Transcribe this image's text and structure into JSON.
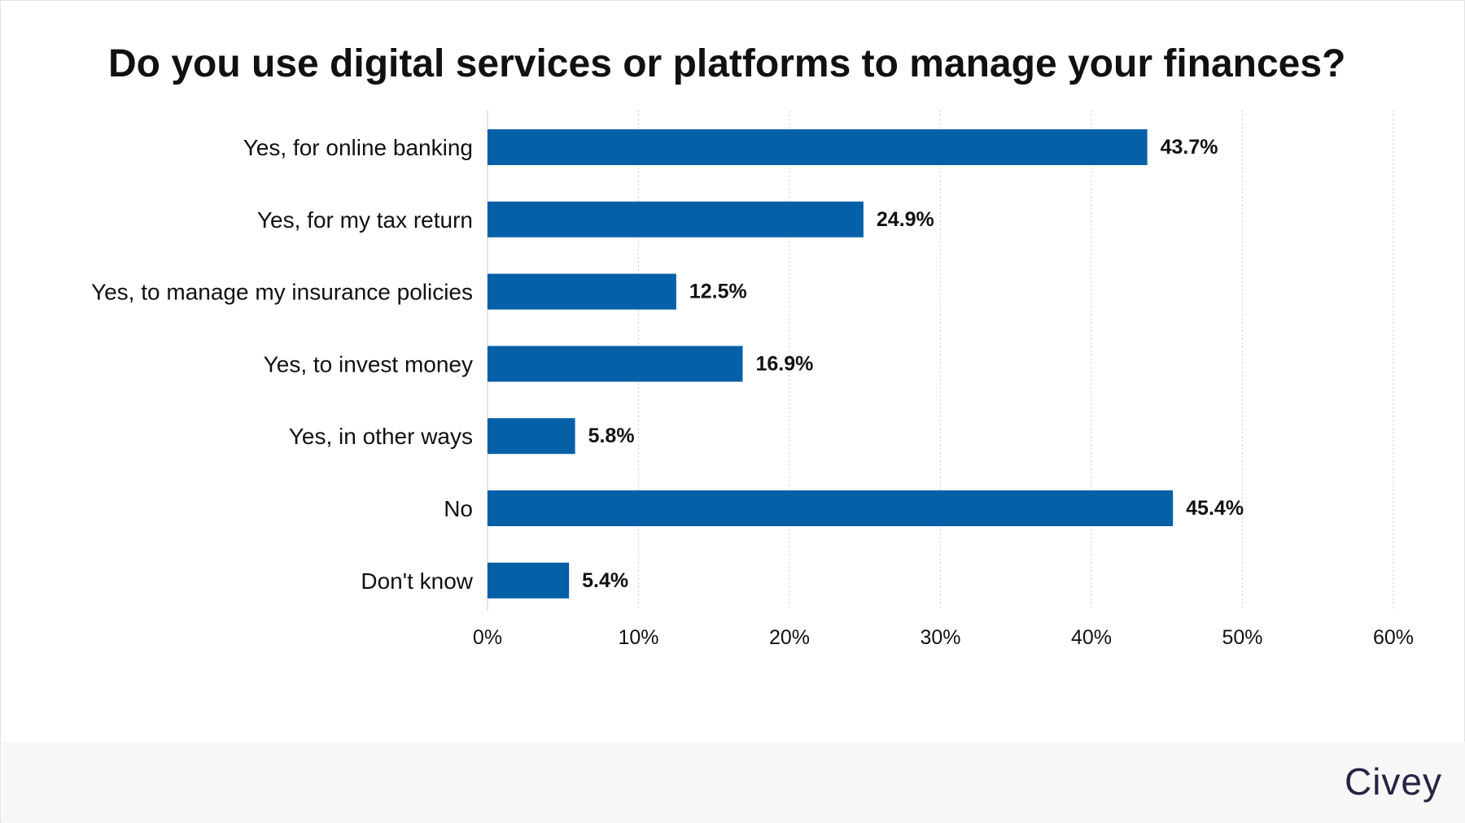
{
  "chart_data": {
    "type": "bar",
    "orientation": "horizontal",
    "title": "Do you use digital services or platforms to manage your finances?",
    "categories": [
      "Yes, for online banking",
      "Yes, for my tax return",
      "Yes, to manage my insurance policies",
      "Yes, to invest money",
      "Yes, in other ways",
      "No",
      "Don't know"
    ],
    "values": [
      43.7,
      24.9,
      12.5,
      16.9,
      5.8,
      45.4,
      5.4
    ],
    "value_labels": [
      "43.7%",
      "24.9%",
      "12.5%",
      "16.9%",
      "5.8%",
      "45.4%",
      "5.4%"
    ],
    "xlim": [
      0,
      60
    ],
    "xticks": [
      0,
      10,
      20,
      30,
      40,
      50,
      60
    ],
    "xtick_labels": [
      "0%",
      "10%",
      "20%",
      "30%",
      "40%",
      "50%",
      "60%"
    ],
    "grid": "vertical dotted",
    "bar_color": "#0560a8"
  },
  "footer": {
    "brand": "Civey"
  }
}
